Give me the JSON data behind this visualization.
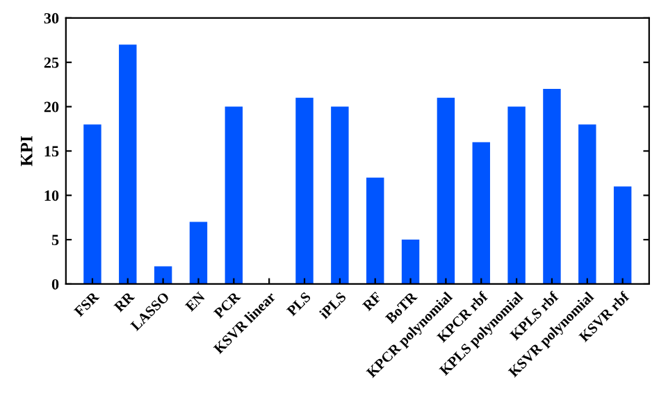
{
  "chart_data": {
    "type": "bar",
    "ylabel": "KPI",
    "categories": [
      "FSR",
      "RR",
      "LASSO",
      "EN",
      "PCR",
      "KSVR linear",
      "PLS",
      "iPLS",
      "RF",
      "BoTR",
      "KPCR polynomial",
      "KPCR rbf",
      "KPLS polynomial",
      "KPLS rbf",
      "KSVR polynomial",
      "KSVR rbf"
    ],
    "values": [
      18,
      27,
      2,
      7,
      20,
      0,
      21,
      20,
      12,
      5,
      21,
      16,
      20,
      22,
      18,
      11
    ],
    "color": "#0055ff",
    "ylim": [
      0,
      30
    ],
    "yticks": [
      0,
      5,
      10,
      15,
      20,
      25,
      30
    ],
    "grid": false,
    "legend": false
  }
}
